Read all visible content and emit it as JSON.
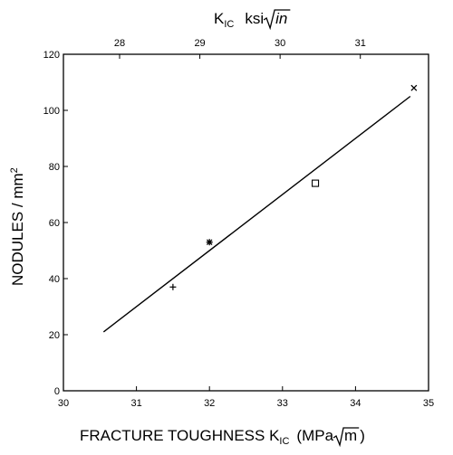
{
  "chart_data": {
    "type": "scatter",
    "title": "",
    "xlabel": {
      "main": "FRACTURE TOUGHNESS K",
      "subscript": "IC",
      "units_prefix": "(MPa",
      "radicand": "m",
      "units_suffix": ")"
    },
    "ylabel": {
      "main": "NODULES / mm",
      "superscript": "2"
    },
    "top_xlabel": {
      "main": "K",
      "subscript": "IC",
      "units_prefix": "ksi",
      "radicand": "in"
    },
    "xlim": [
      30,
      35
    ],
    "ylim": [
      0,
      120
    ],
    "xticks": [
      30,
      31,
      32,
      33,
      34,
      35
    ],
    "yticks": [
      0,
      20,
      40,
      60,
      80,
      100,
      120
    ],
    "top_ticks": [
      28,
      29,
      30,
      31
    ],
    "top_axis_conversion": 0.91,
    "grid": false,
    "legend": "none",
    "points": [
      {
        "x": 31.5,
        "y": 37,
        "marker": "plus"
      },
      {
        "x": 32.0,
        "y": 53,
        "marker": "asterisk"
      },
      {
        "x": 33.45,
        "y": 74,
        "marker": "square"
      },
      {
        "x": 34.8,
        "y": 108,
        "marker": "x"
      }
    ],
    "fit_line": {
      "x": [
        30.55,
        34.75
      ],
      "y": [
        21,
        105
      ]
    }
  }
}
